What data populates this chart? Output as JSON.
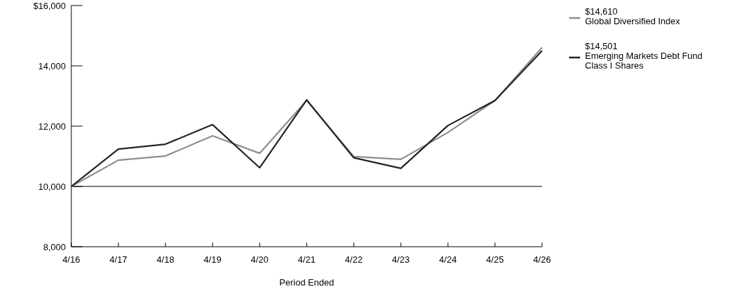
{
  "chart_data": {
    "type": "line",
    "xlabel": "Period Ended",
    "categories": [
      "4/16",
      "4/17",
      "4/18",
      "4/19",
      "4/20",
      "4/21",
      "4/22",
      "4/23",
      "4/24",
      "4/25",
      "4/26"
    ],
    "series": [
      {
        "name": "Global Diversified Index",
        "color": "#8c8c8c",
        "values": [
          10000,
          10870,
          11010,
          11680,
          11100,
          12850,
          10990,
          10900,
          11790,
          12850,
          14610
        ]
      },
      {
        "name": "Emerging Markets Debt Fund Class I Shares",
        "color": "#222222",
        "values": [
          10000,
          11240,
          11400,
          12050,
          10620,
          12870,
          10950,
          10600,
          12020,
          12850,
          14501
        ]
      }
    ],
    "ylim": [
      8000,
      16000
    ],
    "yticks": [
      {
        "value": 8000,
        "label": "8,000"
      },
      {
        "value": 10000,
        "label": "10,000"
      },
      {
        "value": 12000,
        "label": "12,000"
      },
      {
        "value": 14000,
        "label": "14,000"
      },
      {
        "value": 16000,
        "label": "$16,000"
      }
    ],
    "ref_lines": [
      {
        "axis": "y",
        "value": 10000,
        "color": "#000000"
      }
    ],
    "annotations": [
      "$14,610",
      "$14,501"
    ],
    "legend": "right",
    "grid": false,
    "marker": "none",
    "line_style": "solid"
  }
}
